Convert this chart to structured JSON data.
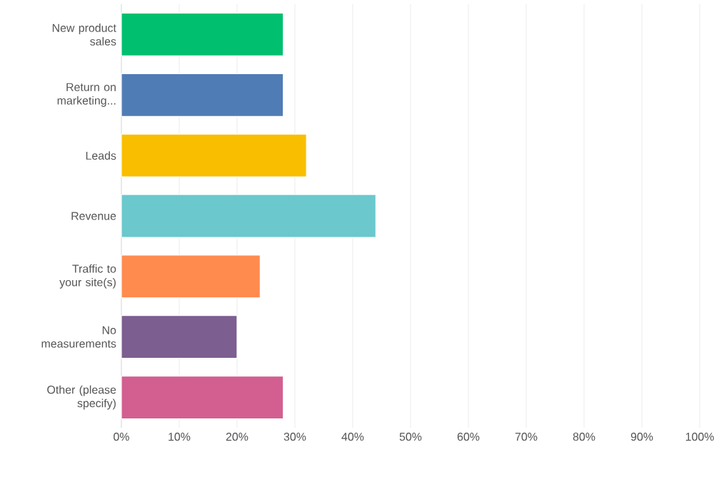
{
  "chart_data": {
    "type": "bar",
    "orientation": "horizontal",
    "categories": [
      "New product sales",
      "Return on marketing...",
      "Leads",
      "Revenue",
      "Traffic to your site(s)",
      "No measurements",
      "Other (please specify)"
    ],
    "values": [
      28,
      28,
      32,
      44,
      24,
      20,
      28
    ],
    "colors": [
      "#00bf6f",
      "#507cb6",
      "#f9be00",
      "#6bc8cd",
      "#ff8b4f",
      "#7d5e90",
      "#d25f90"
    ],
    "xlim": [
      0,
      100
    ],
    "xticks": [
      {
        "value": 0,
        "label": "0%"
      },
      {
        "value": 10,
        "label": "10%"
      },
      {
        "value": 20,
        "label": "20%"
      },
      {
        "value": 30,
        "label": "30%"
      },
      {
        "value": 40,
        "label": "40%"
      },
      {
        "value": 50,
        "label": "50%"
      },
      {
        "value": 60,
        "label": "60%"
      },
      {
        "value": 70,
        "label": "70%"
      },
      {
        "value": 80,
        "label": "80%"
      },
      {
        "value": 90,
        "label": "90%"
      },
      {
        "value": 100,
        "label": "100%"
      }
    ],
    "grid": "x"
  }
}
